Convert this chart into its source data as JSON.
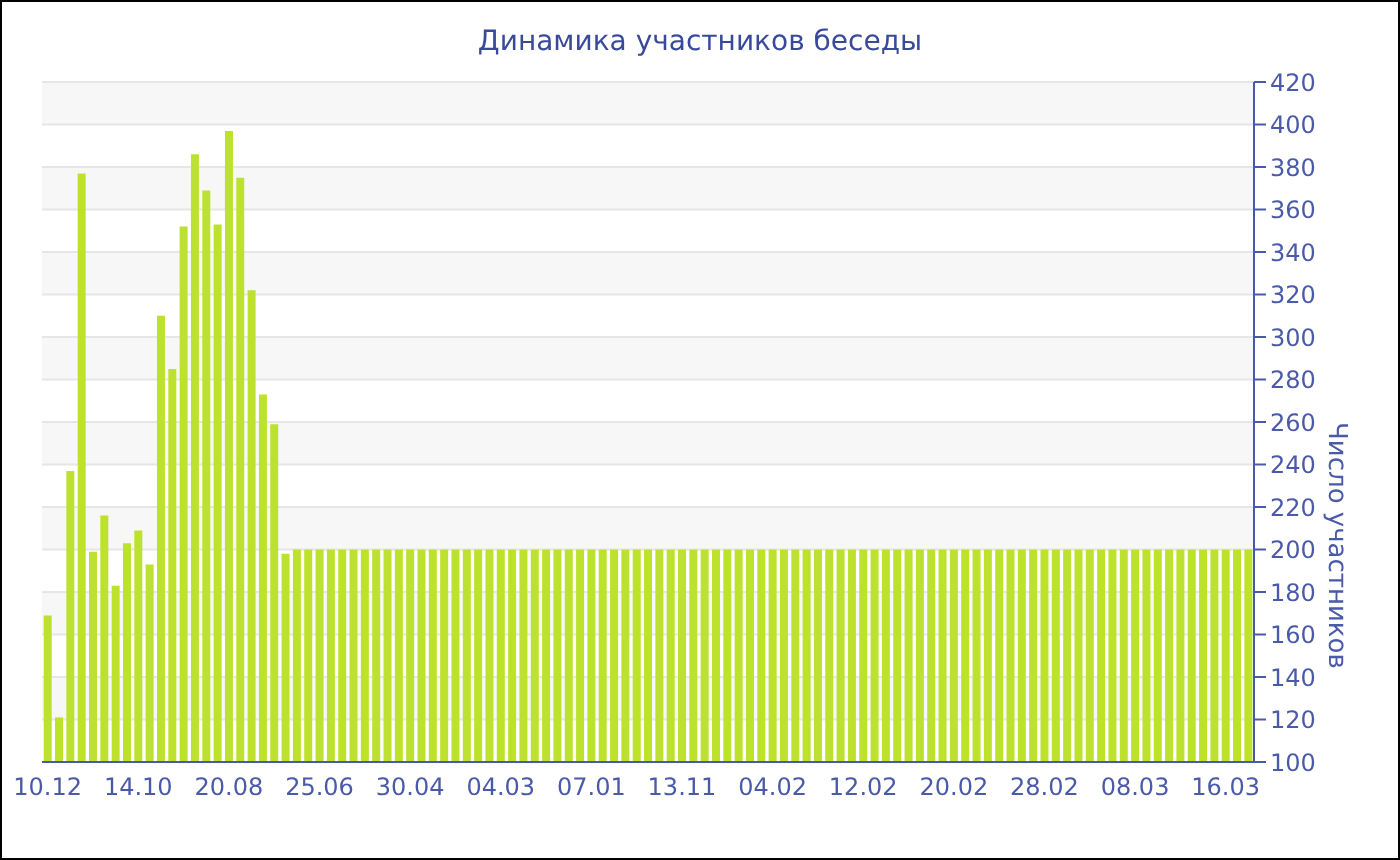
{
  "chart_data": {
    "type": "bar",
    "title": "Динамика участников беседы",
    "ylabel": "Число участников",
    "categories": [
      "10.12",
      null,
      null,
      null,
      null,
      null,
      null,
      null,
      "14.10",
      null,
      null,
      null,
      null,
      null,
      null,
      null,
      "20.08",
      null,
      null,
      null,
      null,
      null,
      null,
      null,
      "25.06",
      null,
      null,
      null,
      null,
      null,
      null,
      null,
      "30.04",
      null,
      null,
      null,
      null,
      null,
      null,
      null,
      "04.03",
      null,
      null,
      null,
      null,
      null,
      null,
      null,
      "07.01",
      null,
      null,
      null,
      null,
      null,
      null,
      null,
      "13.11",
      null,
      null,
      null,
      null,
      null,
      null,
      null,
      "04.02",
      null,
      null,
      null,
      null,
      null,
      null,
      null,
      "12.02",
      null,
      null,
      null,
      null,
      null,
      null,
      null,
      "20.02",
      null,
      null,
      null,
      null,
      null,
      null,
      null,
      "28.02",
      null,
      null,
      null,
      null,
      null,
      null,
      null,
      "08.03",
      null,
      null,
      null,
      null,
      null,
      null,
      null,
      "16.03",
      null,
      null
    ],
    "values": [
      169,
      121,
      237,
      377,
      199,
      216,
      183,
      203,
      209,
      193,
      310,
      285,
      352,
      386,
      369,
      353,
      397,
      375,
      322,
      273,
      259,
      198,
      200,
      200,
      200,
      200,
      200,
      200,
      200,
      200,
      200,
      200,
      200,
      200,
      200,
      200,
      200,
      200,
      200,
      200,
      200,
      200,
      200,
      200,
      200,
      200,
      200,
      200,
      200,
      200,
      200,
      200,
      200,
      200,
      200,
      200,
      200,
      200,
      200,
      200,
      200,
      200,
      200,
      200,
      200,
      200,
      200,
      200,
      200,
      200,
      200,
      200,
      200,
      200,
      200,
      200,
      200,
      200,
      200,
      200,
      200,
      200,
      200,
      200,
      200,
      200,
      200,
      200,
      200,
      200,
      200,
      200,
      200,
      200,
      200,
      200,
      200,
      200,
      200,
      200,
      200,
      200,
      200,
      200,
      200,
      200,
      200
    ],
    "color": "#bde22d",
    "ylim": [
      100,
      420
    ],
    "yticks": [
      100,
      120,
      140,
      160,
      180,
      200,
      220,
      240,
      260,
      280,
      300,
      320,
      340,
      360,
      380,
      400,
      420
    ],
    "grid": "y"
  }
}
